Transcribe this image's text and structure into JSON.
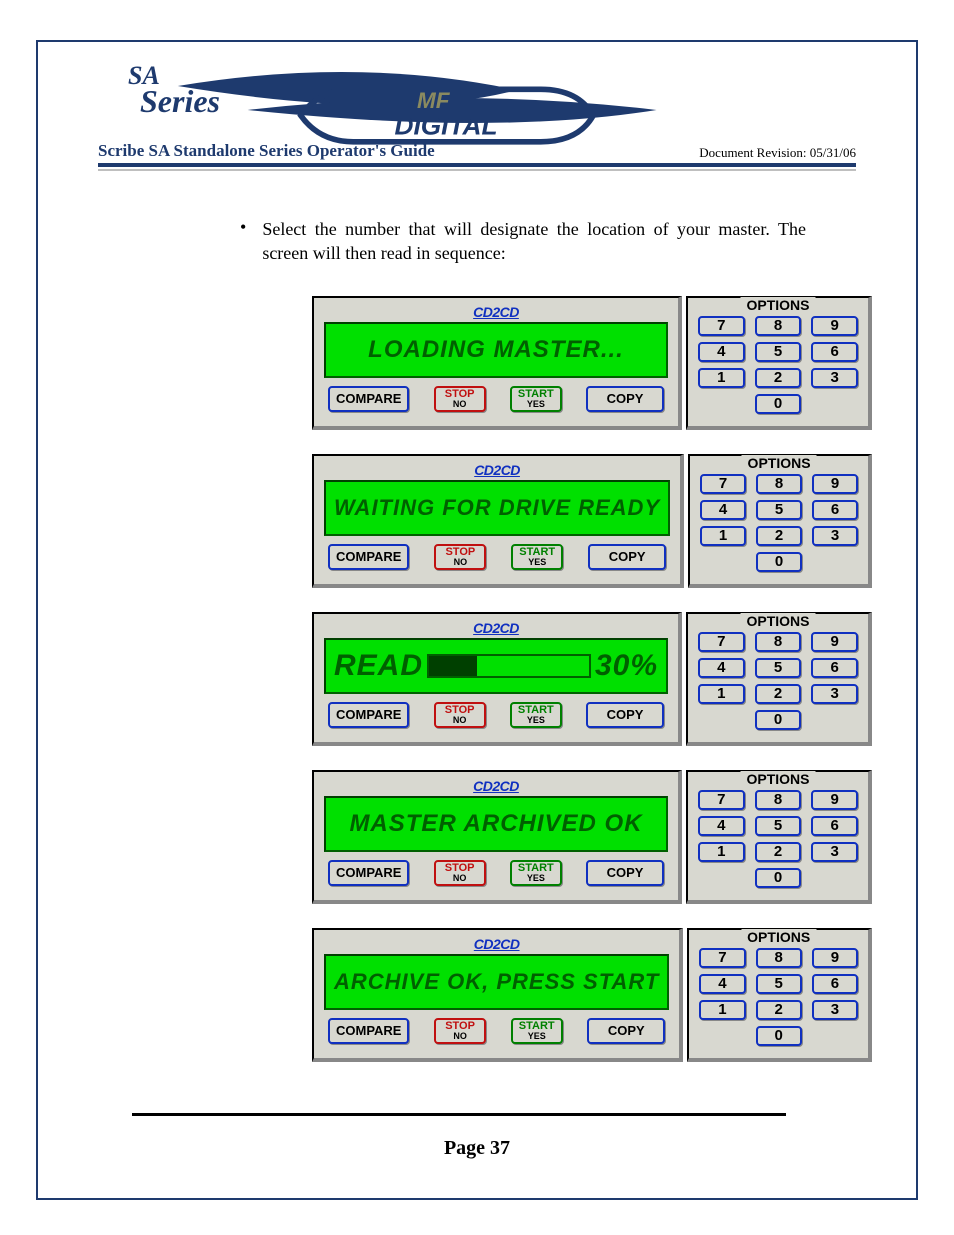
{
  "doc": {
    "title": "Scribe SA Standalone Series Operator's Guide",
    "revision": "Document Revision: 05/31/06",
    "page_label": "Page 37",
    "banner": {
      "logo_sa_top": "SA",
      "logo_sa_bottom": "Series",
      "mf_top": "MF",
      "mf_bottom": "DIGITAL",
      "swoosh_color": "#1e3a6e",
      "header_rule_color": "#1e3a6e"
    },
    "bullet_text": "Select the number that will designate the location of your master. The screen will then read in sequence:"
  },
  "device_common": {
    "brand": "CD2CD",
    "options_label": "OPTIONS",
    "buttons": {
      "compare": "COMPARE",
      "stop_top": "STOP",
      "stop_sub": "NO",
      "start_top": "START",
      "start_sub": "YES",
      "copy": "COPY"
    },
    "keypad": [
      "7",
      "8",
      "9",
      "4",
      "5",
      "6",
      "1",
      "2",
      "3",
      "0"
    ],
    "colors": {
      "panel_bg": "#d8d8d0",
      "lcd_bg": "#00e000",
      "lcd_text": "#006000",
      "blue": "#1030c0",
      "red": "#c01010",
      "green": "#008000"
    }
  },
  "screens": [
    {
      "mode": "center",
      "text": "LOADING MASTER...",
      "size": "normal"
    },
    {
      "mode": "center",
      "text": "WAITING FOR DRIVE READY",
      "size": "smaller"
    },
    {
      "mode": "read",
      "label": "READ",
      "percent_label": "30%",
      "percent_value": 30
    },
    {
      "mode": "center",
      "text": "MASTER ARCHIVED OK",
      "size": "normal"
    },
    {
      "mode": "center",
      "text": "ARCHIVE OK, PRESS START",
      "size": "smaller"
    }
  ]
}
